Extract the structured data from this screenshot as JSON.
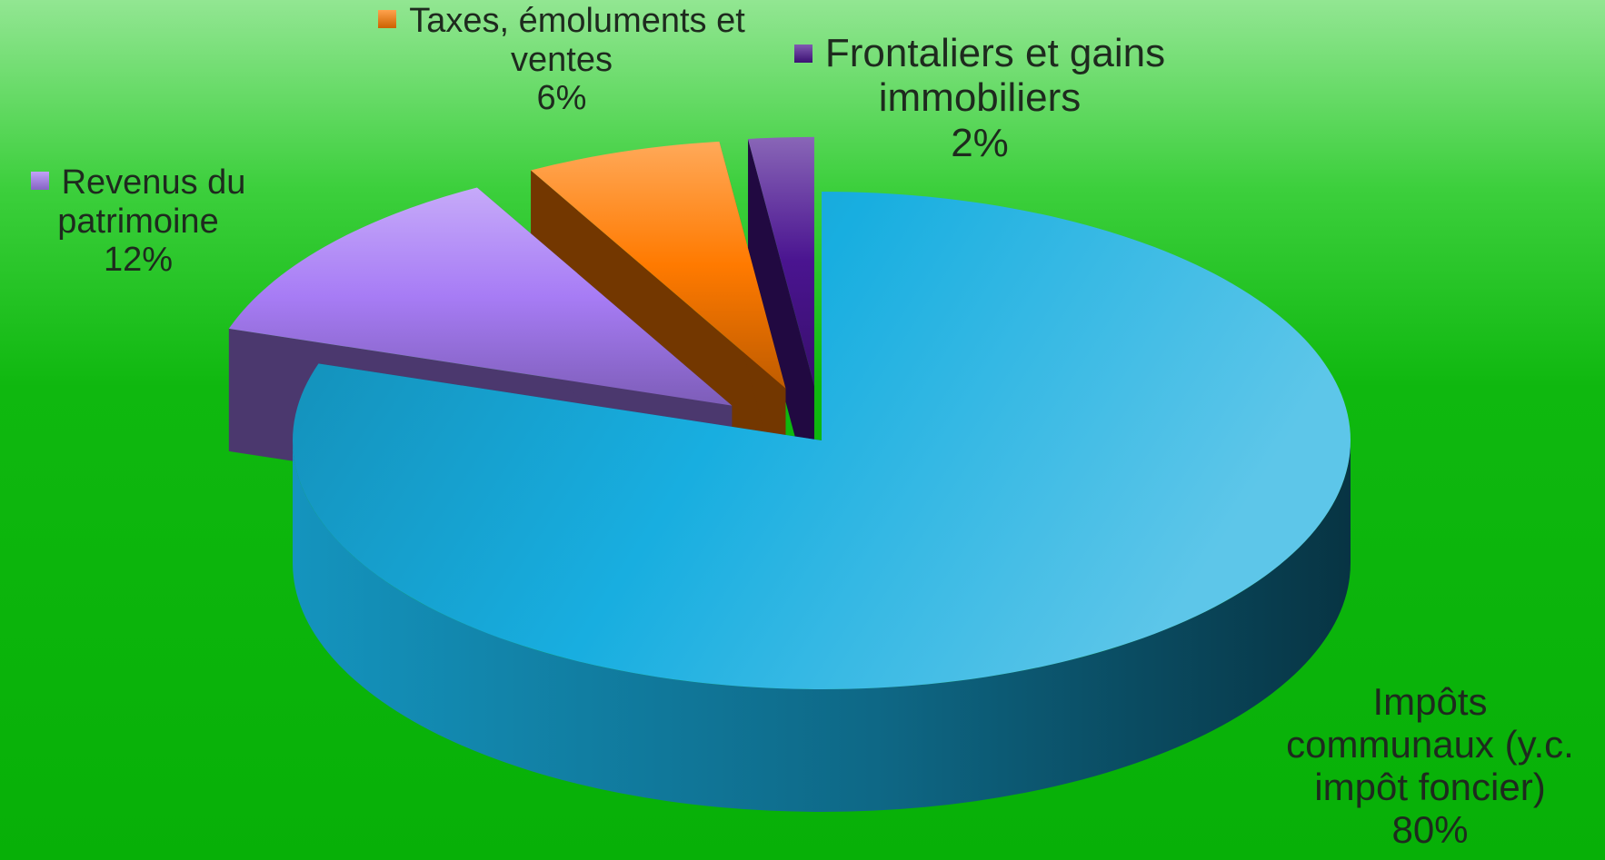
{
  "chart_data": {
    "type": "pie",
    "categories": [
      "Impôts communaux (y.c. impôt foncier)",
      "Revenus du patrimoine",
      "Taxes, émoluments et ventes",
      "Frontaliers et gains immobiliers"
    ],
    "values": [
      80,
      12,
      6,
      2
    ],
    "value_labels": [
      "80%",
      "12%",
      "6%",
      "2%"
    ],
    "colors": [
      "#18aee0",
      "#a77cf5",
      "#ff7a00",
      "#4a1490"
    ]
  }
}
